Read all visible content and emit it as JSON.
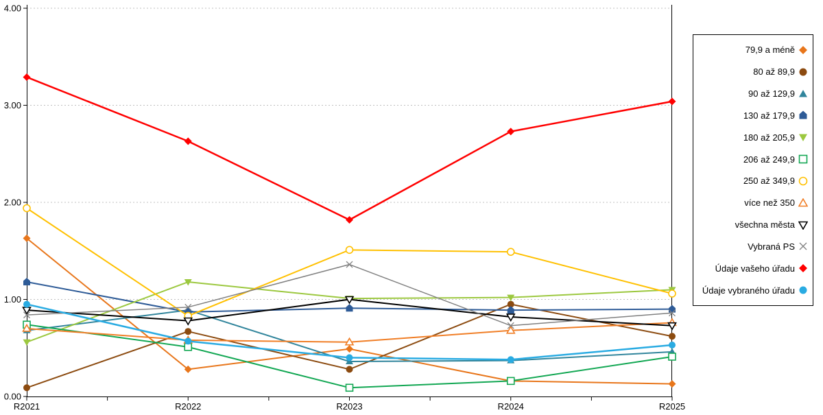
{
  "chart_data": {
    "type": "line",
    "title": "",
    "xlabel": "",
    "ylabel": "",
    "categories": [
      "R2021",
      "R2022",
      "R2023",
      "R2024",
      "R2025"
    ],
    "ylim": [
      0,
      4
    ],
    "y_ticks": [
      "0.00",
      "1.00",
      "2.00",
      "3.00",
      "4.00"
    ],
    "grid": "horizontal-dotted",
    "legend_position": "right",
    "series": [
      {
        "name": "79,9 a méně",
        "color": "#E8761B",
        "marker": "diamond",
        "line_width": 2,
        "values": [
          1.63,
          0.28,
          0.49,
          0.16,
          0.13
        ]
      },
      {
        "name": "80 až 89,9",
        "color": "#8C4B10",
        "marker": "circle",
        "line_width": 2,
        "values": [
          0.09,
          0.67,
          0.28,
          0.95,
          0.62
        ]
      },
      {
        "name": "90 až 129,9",
        "color": "#31859C",
        "marker": "triangle-up",
        "line_width": 2,
        "values": [
          0.68,
          0.89,
          0.36,
          0.37,
          0.46
        ]
      },
      {
        "name": "130 až 179,9",
        "color": "#2E5B97",
        "marker": "pentagon",
        "line_width": 2,
        "values": [
          1.18,
          0.87,
          0.91,
          0.89,
          0.9
        ]
      },
      {
        "name": "180 až 205,9",
        "color": "#9CC83F",
        "marker": "triangle-down",
        "line_width": 2,
        "values": [
          0.56,
          1.18,
          1.01,
          1.02,
          1.1
        ]
      },
      {
        "name": "206 až 249,9",
        "color": "#12A753",
        "marker": "square-open",
        "line_width": 2,
        "values": [
          0.74,
          0.51,
          0.09,
          0.16,
          0.41
        ]
      },
      {
        "name": "250 až 349,9",
        "color": "#FFC000",
        "marker": "circle-open",
        "line_width": 2,
        "values": [
          1.94,
          0.83,
          1.51,
          1.49,
          1.06
        ]
      },
      {
        "name": "více než 350",
        "color": "#F07E26",
        "marker": "triangle-up-open",
        "line_width": 2,
        "values": [
          0.7,
          0.58,
          0.56,
          0.68,
          0.76
        ]
      },
      {
        "name": "všechna města",
        "color": "#000000",
        "marker": "triangle-down-open",
        "line_width": 2,
        "values": [
          0.89,
          0.78,
          1.0,
          0.82,
          0.73
        ]
      },
      {
        "name": "Vybraná PS",
        "color": "#808080",
        "marker": "x",
        "line_width": 1.5,
        "values": [
          0.84,
          0.92,
          1.36,
          0.73,
          0.86
        ]
      },
      {
        "name": "Údaje vašeho úřadu",
        "color": "#FF0000",
        "marker": "diamond",
        "line_width": 2.5,
        "values": [
          3.29,
          2.63,
          1.82,
          2.73,
          3.04
        ]
      },
      {
        "name": "Údaje vybraného úřadu",
        "color": "#29ABE2",
        "marker": "circle",
        "line_width": 2.5,
        "values": [
          0.95,
          0.57,
          0.4,
          0.38,
          0.53
        ]
      }
    ]
  }
}
